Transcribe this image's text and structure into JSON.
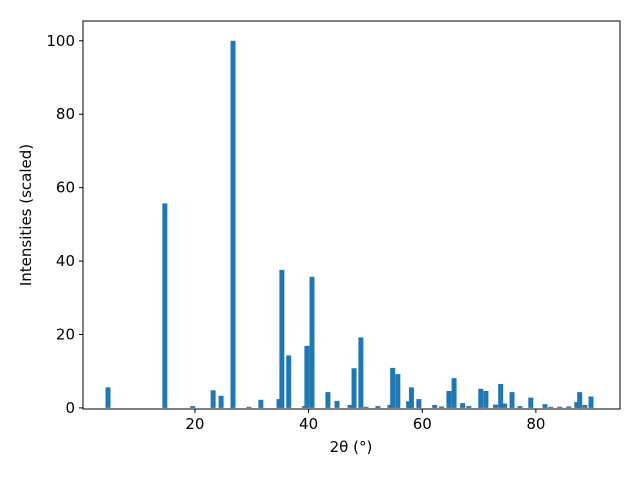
{
  "chart_data": {
    "type": "bar",
    "x_label": "2θ (°)",
    "y_label": "Intensities (scaled)",
    "color": "#1f77b4",
    "x": [
      4.7,
      14.7,
      19.6,
      23.2,
      24.6,
      26.7,
      29.5,
      31.6,
      34.8,
      35.3,
      36.5,
      39.3,
      39.7,
      40.6,
      43.4,
      45.0,
      47.3,
      48.0,
      49.2,
      50.1,
      52.2,
      54.3,
      54.8,
      55.7,
      57.6,
      58.1,
      59.4,
      62.2,
      63.4,
      64.7,
      65.6,
      67.1,
      68.2,
      70.3,
      71.2,
      72.9,
      73.8,
      74.5,
      75.8,
      77.2,
      79.1,
      81.6,
      82.6,
      84.2,
      85.8,
      87.2,
      87.7,
      88.6,
      89.7
    ],
    "values": [
      5.6,
      55.7,
      0.5,
      4.8,
      3.3,
      100,
      0.3,
      2.2,
      2.4,
      37.6,
      14.3,
      0.5,
      16.9,
      35.7,
      4.3,
      1.9,
      0.8,
      10.8,
      19.2,
      0.3,
      0.5,
      0.8,
      10.9,
      9.2,
      1.8,
      5.6,
      2.4,
      0.8,
      0.4,
      4.6,
      8.1,
      1.3,
      0.5,
      5.2,
      4.6,
      0.9,
      6.5,
      1.2,
      4.3,
      0.5,
      2.8,
      1.0,
      0.3,
      0.3,
      0.4,
      1.6,
      4.3,
      0.8,
      3.1
    ],
    "xlim": [
      0.3,
      94.8
    ],
    "ylim": [
      -0.3,
      105.4
    ],
    "xticks": [
      20,
      40,
      60,
      80
    ],
    "yticks": [
      0,
      20,
      40,
      60,
      80,
      100
    ]
  }
}
